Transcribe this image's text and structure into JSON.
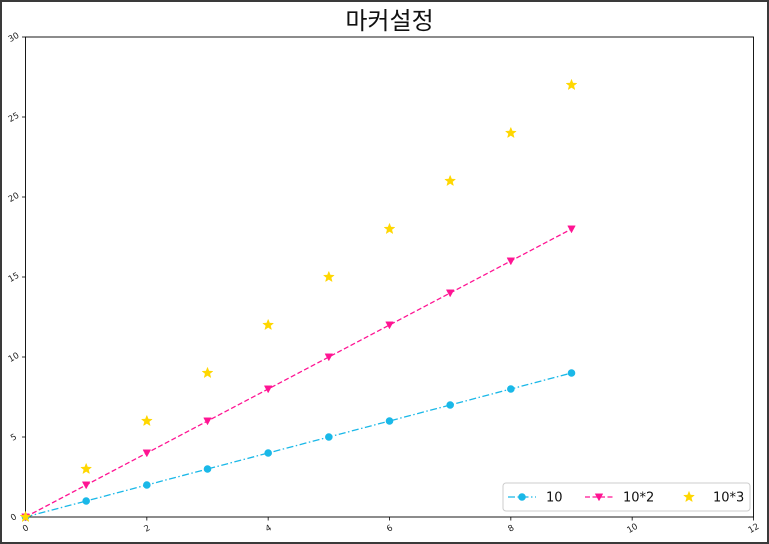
{
  "chart_data": {
    "type": "line",
    "title": "마커설정",
    "xlabel": "",
    "ylabel": "",
    "xlim": [
      0,
      12
    ],
    "ylim": [
      0,
      30
    ],
    "xticks": [
      0,
      2,
      4,
      6,
      8,
      10,
      12
    ],
    "yticks": [
      0,
      5,
      10,
      15,
      20,
      25,
      30
    ],
    "grid": false,
    "x": [
      0,
      1,
      2,
      3,
      4,
      5,
      6,
      7,
      8,
      9
    ],
    "series": [
      {
        "name": "10",
        "values": [
          0,
          1,
          2,
          3,
          4,
          5,
          6,
          7,
          8,
          9
        ],
        "color": "#1AB8E8",
        "marker": "circle",
        "line": "dash-dot"
      },
      {
        "name": "10*2",
        "values": [
          0,
          2,
          4,
          6,
          8,
          10,
          12,
          14,
          16,
          18
        ],
        "color": "#FF1493",
        "marker": "triangle-down",
        "line": "dashed"
      },
      {
        "name": "10*3",
        "values": [
          0,
          3,
          6,
          9,
          12,
          15,
          18,
          21,
          24,
          27
        ],
        "color": "#FFD700",
        "marker": "star",
        "line": "none"
      }
    ],
    "legend": {
      "position": "lower-right",
      "columns": 3
    }
  }
}
